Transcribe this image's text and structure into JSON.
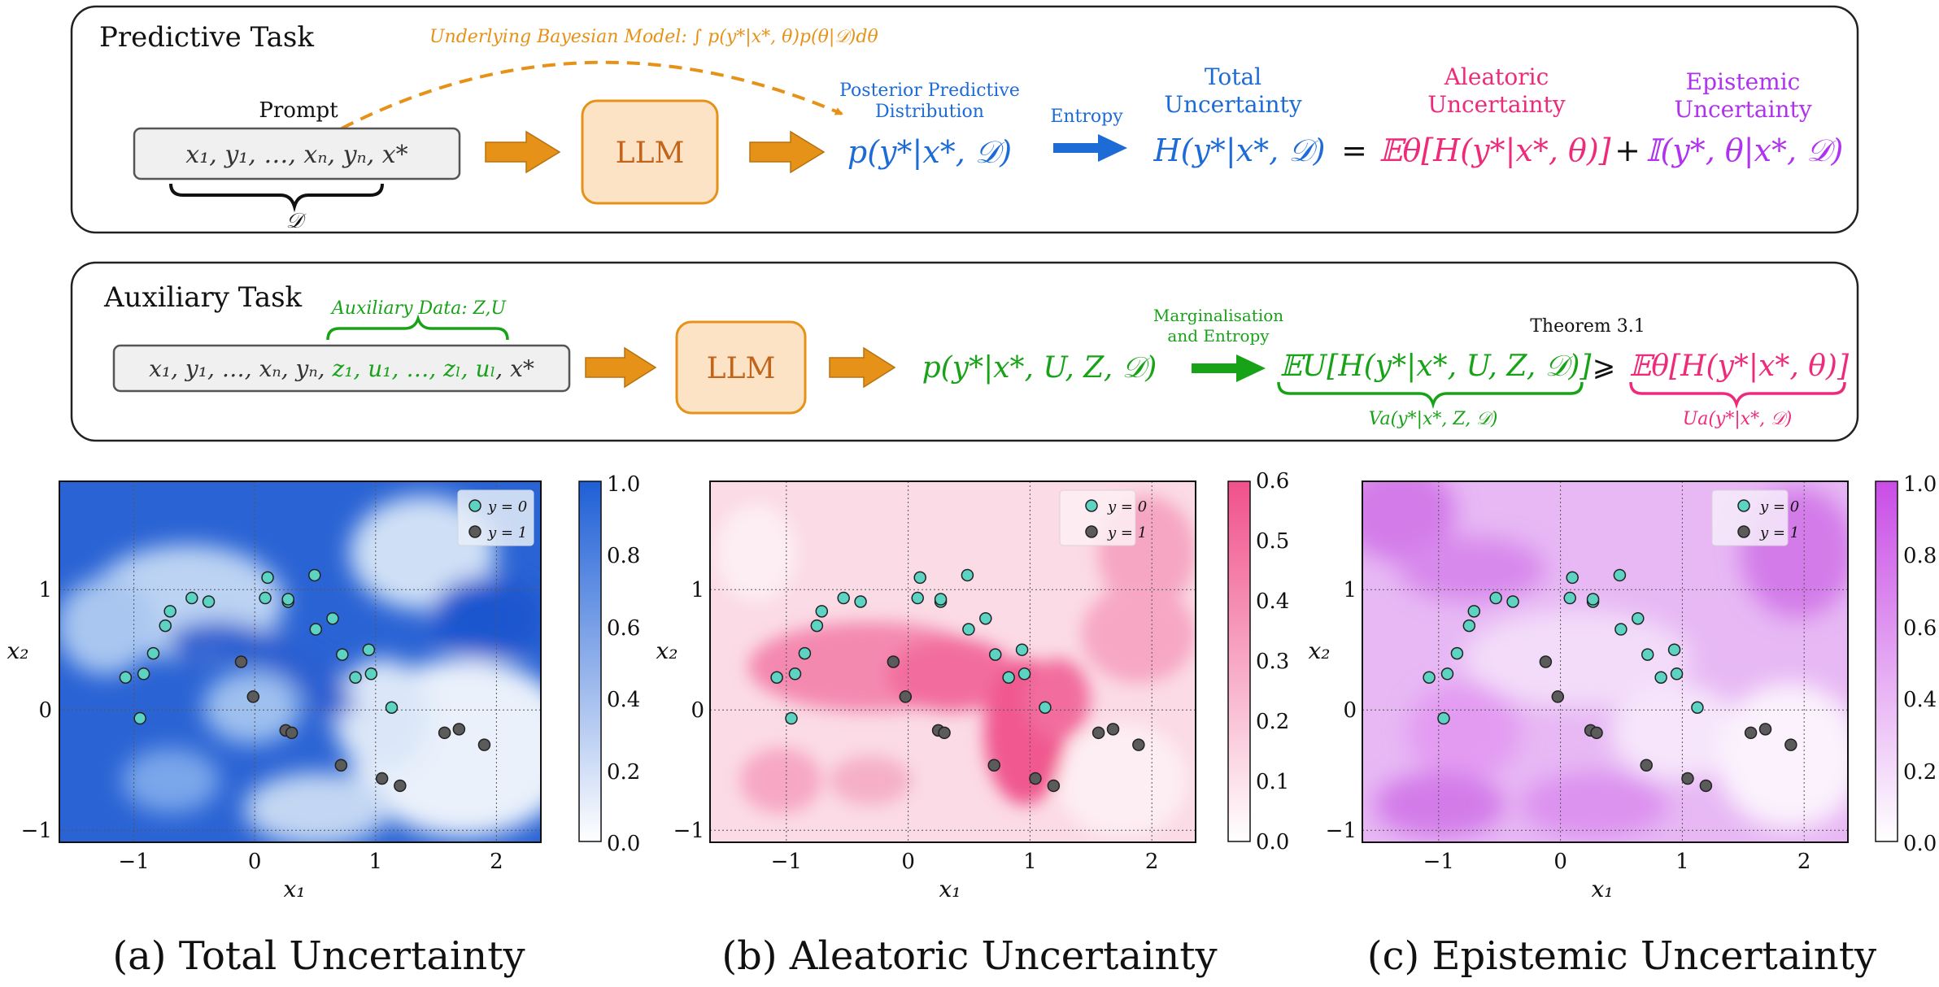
{
  "top": {
    "title": "Predictive Task",
    "underlying": "Underlying Bayesian Model: ∫ p(y*|x*, θ)p(θ|𝒟)dθ",
    "prompt_label": "Prompt",
    "prompt_text": "x₁, y₁, …, xₙ, yₙ, x*",
    "dataset_label": "𝒟",
    "llm": "LLM",
    "ppd_label_1": "Posterior Predictive",
    "ppd_label_2": "Distribution",
    "ppd_formula": "p(y*|x*, 𝒟)",
    "entropy_label": "Entropy",
    "total_label_1": "Total",
    "total_label_2": "Uncertainty",
    "total_formula": "H(y*|x*, 𝒟)",
    "equals": "=",
    "aleatoric_label_1": "Aleatoric",
    "aleatoric_label_2": "Uncertainty",
    "aleatoric_formula": "𝔼θ[H(y*|x*, θ)]",
    "plus": "+",
    "epistemic_label_1": "Epistemic",
    "epistemic_label_2": "Uncertainty",
    "epistemic_formula": "𝕀(y*, θ|x*, 𝒟)"
  },
  "aux": {
    "title": "Auxiliary Task",
    "aux_data_label": "Auxiliary Data: Z,U",
    "prompt_part1": "x₁, y₁, …, xₙ, yₙ, ",
    "prompt_part2": "z₁, u₁, …, zₗ, uₗ",
    "prompt_part3": ", x*",
    "llm": "LLM",
    "pred_formula": "p(y*|x*, U, Z, 𝒟)",
    "marg_label_1": "Marginalisation",
    "marg_label_2": "and Entropy",
    "theorem": "Theorem 3.1",
    "lhs": "𝔼U[H(y*|x*, U, Z, 𝒟)]",
    "geq": "⩾",
    "rhs": "𝔼θ[H(y*|x*, θ)]",
    "lhs_brace": "Va(y*|x*, Z, 𝒟)",
    "rhs_brace": "Ua(y*|x*, 𝒟)"
  },
  "colors": {
    "orange": "#e69219",
    "orange_fill": "#fde3c6",
    "blue": "#1d6bd6",
    "pink": "#ee2a7b",
    "purple": "#b031ee",
    "green": "#18a218",
    "teal_point": "#5dd3c4",
    "dark_point": "#5b5b5b"
  },
  "chart_data": [
    {
      "type": "heatmap",
      "caption": "(a) Total Uncertainty",
      "xlabel": "x₁",
      "ylabel": "x₂",
      "xlim": [
        -1.6,
        2.4
      ],
      "ylim": [
        -1.1,
        1.9
      ],
      "xticks": [
        "−1",
        "0",
        "1",
        "2"
      ],
      "yticks": [
        "−1",
        "0",
        "1"
      ],
      "colorbar_ticks": [
        "1.0",
        "0.8",
        "0.6",
        "0.4",
        "0.2",
        "0.0"
      ],
      "colorbar_range": [
        0,
        1.0
      ],
      "colormap_max": "#1e5fd6",
      "legend": [
        "y = 0",
        "y = 1"
      ],
      "grid": true,
      "legend_position": "top-right"
    },
    {
      "type": "heatmap",
      "caption": "(b) Aleatoric Uncertainty",
      "xlabel": "x₁",
      "ylabel": "x₂",
      "xlim": [
        -1.6,
        2.4
      ],
      "ylim": [
        -1.1,
        1.9
      ],
      "xticks": [
        "−1",
        "0",
        "1",
        "2"
      ],
      "yticks": [
        "−1",
        "0",
        "1"
      ],
      "colorbar_ticks": [
        "0.6",
        "0.5",
        "0.4",
        "0.3",
        "0.2",
        "0.1",
        "0.0"
      ],
      "colorbar_range": [
        0,
        0.6
      ],
      "colormap_max": "#f0518a",
      "legend": [
        "y = 0",
        "y = 1"
      ],
      "grid": true,
      "legend_position": "top-right"
    },
    {
      "type": "heatmap",
      "caption": "(c) Epistemic Uncertainty",
      "xlabel": "x₁",
      "ylabel": "x₂",
      "xlim": [
        -1.6,
        2.4
      ],
      "ylim": [
        -1.1,
        1.9
      ],
      "xticks": [
        "−1",
        "0",
        "1",
        "2"
      ],
      "yticks": [
        "−1",
        "0",
        "1"
      ],
      "colorbar_ticks": [
        "1.0",
        "0.8",
        "0.6",
        "0.4",
        "0.2",
        "0.0"
      ],
      "colorbar_range": [
        0,
        1.0
      ],
      "colormap_max": "#c94de6",
      "legend": [
        "y = 0",
        "y = 1"
      ],
      "grid": true,
      "legend_position": "top-right"
    }
  ],
  "points_y0": [
    [
      -1.05,
      0.27
    ],
    [
      -0.9,
      0.3
    ],
    [
      -0.93,
      -0.07
    ],
    [
      -0.82,
      0.47
    ],
    [
      -0.72,
      0.7
    ],
    [
      -0.68,
      0.82
    ],
    [
      -0.5,
      0.93
    ],
    [
      -0.36,
      0.9
    ],
    [
      0.13,
      1.1
    ],
    [
      0.11,
      0.93
    ],
    [
      0.3,
      0.9
    ],
    [
      0.3,
      0.92
    ],
    [
      0.52,
      1.12
    ],
    [
      0.53,
      0.67
    ],
    [
      0.67,
      0.76
    ],
    [
      0.75,
      0.46
    ],
    [
      0.86,
      0.27
    ],
    [
      0.97,
      0.5
    ],
    [
      0.99,
      0.3
    ],
    [
      1.16,
      0.02
    ]
  ],
  "points_y1": [
    [
      -0.09,
      0.4
    ],
    [
      0.01,
      0.11
    ],
    [
      0.28,
      -0.17
    ],
    [
      0.33,
      -0.19
    ],
    [
      0.74,
      -0.46
    ],
    [
      1.08,
      -0.57
    ],
    [
      1.23,
      -0.63
    ],
    [
      1.6,
      -0.19
    ],
    [
      1.72,
      -0.16
    ],
    [
      1.93,
      -0.29
    ]
  ]
}
